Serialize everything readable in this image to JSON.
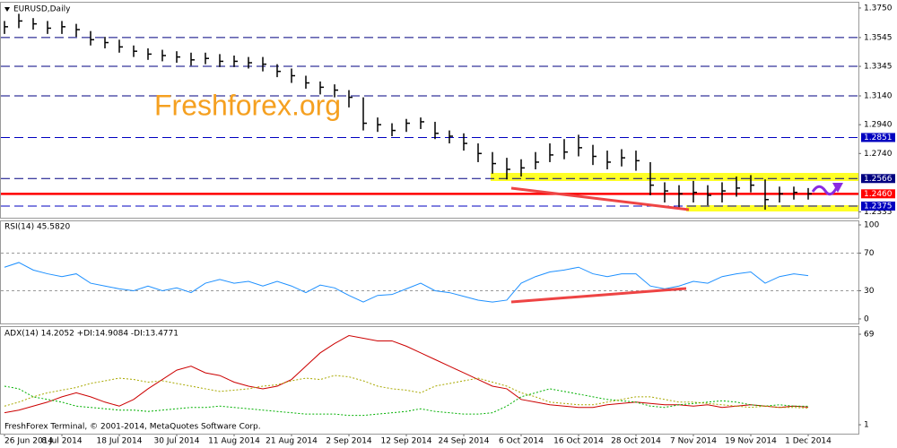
{
  "window": {
    "footer": "FreshForex Terminal, © 2001-2014, MetaQuotes Software Corp.",
    "watermark": "Freshforex.org"
  },
  "chart_data": [
    {
      "type": "hlc",
      "title": "EURUSD,Daily",
      "color": "#000000",
      "categories": [
        "26 Jun 2014",
        null,
        null,
        null,
        "8 Jul 2014",
        null,
        null,
        null,
        "18 Jul 2014",
        null,
        null,
        null,
        "30 Jul 2014",
        null,
        null,
        null,
        "11 Aug 2014",
        null,
        null,
        null,
        "21 Aug 2014",
        null,
        null,
        null,
        "2 Sep 2014",
        null,
        null,
        null,
        "12 Sep 2014",
        null,
        null,
        null,
        "24 Sep 2014",
        null,
        null,
        null,
        "6 Oct 2014",
        null,
        null,
        null,
        "16 Oct 2014",
        null,
        null,
        null,
        "28 Oct 2014",
        null,
        null,
        null,
        "7 Nov 2014",
        null,
        null,
        null,
        "19 Nov 2014",
        null,
        null,
        null,
        "1 Dec 2014"
      ],
      "high": [
        1.366,
        1.371,
        1.368,
        1.366,
        1.366,
        1.364,
        1.359,
        1.355,
        1.353,
        1.349,
        1.347,
        1.346,
        1.345,
        1.344,
        1.344,
        1.343,
        1.342,
        1.341,
        1.341,
        1.336,
        1.333,
        1.328,
        1.324,
        1.322,
        1.318,
        1.313,
        1.299,
        1.295,
        1.298,
        1.299,
        1.296,
        1.29,
        1.288,
        1.281,
        1.275,
        1.271,
        1.27,
        1.275,
        1.281,
        1.284,
        1.287,
        1.28,
        1.276,
        1.277,
        1.276,
        1.268,
        1.254,
        1.252,
        1.255,
        1.252,
        1.254,
        1.258,
        1.259,
        1.256,
        1.251,
        1.251,
        1.25
      ],
      "low": [
        1.357,
        1.361,
        1.36,
        1.357,
        1.357,
        1.355,
        1.349,
        1.347,
        1.344,
        1.341,
        1.339,
        1.338,
        1.337,
        1.335,
        1.336,
        1.334,
        1.334,
        1.333,
        1.331,
        1.327,
        1.323,
        1.319,
        1.315,
        1.313,
        1.306,
        1.29,
        1.289,
        1.286,
        1.289,
        1.291,
        1.284,
        1.281,
        1.276,
        1.268,
        1.26,
        1.256,
        1.258,
        1.263,
        1.268,
        1.27,
        1.272,
        1.266,
        1.263,
        1.265,
        1.262,
        1.245,
        1.24,
        1.236,
        1.24,
        1.238,
        1.24,
        1.244,
        1.247,
        1.235,
        1.24,
        1.242,
        1.242
      ],
      "close": [
        1.362,
        1.366,
        1.364,
        1.361,
        1.362,
        1.36,
        1.353,
        1.351,
        1.348,
        1.345,
        1.343,
        1.342,
        1.341,
        1.339,
        1.34,
        1.338,
        1.338,
        1.337,
        1.336,
        1.331,
        1.328,
        1.323,
        1.32,
        1.318,
        1.313,
        1.295,
        1.294,
        1.29,
        1.295,
        1.296,
        1.288,
        1.286,
        1.281,
        1.274,
        1.267,
        1.263,
        1.264,
        1.268,
        1.273,
        1.275,
        1.278,
        1.272,
        1.268,
        1.271,
        1.269,
        1.252,
        1.248,
        1.246,
        1.247,
        1.245,
        1.248,
        1.25,
        1.252,
        1.242,
        1.246,
        1.247,
        1.246
      ],
      "ylim": [
        1.2294,
        1.3787
      ],
      "yticks": [
        {
          "value": 1.375,
          "label": "1.3750"
        },
        1.3545,
        1.3345,
        {
          "value": 1.314,
          "label": "1.3140"
        },
        {
          "value": 1.294,
          "label": "1.2940"
        },
        {
          "value": 1.274,
          "label": "1.2740"
        },
        1.2335
      ],
      "levels": [
        {
          "value": 1.3545,
          "color": "#000080",
          "style": "dashed"
        },
        {
          "value": 1.3345,
          "color": "#000080",
          "style": "dashed"
        },
        {
          "value": 1.314,
          "color": "#000080",
          "style": "dashed"
        },
        {
          "value": 1.2851,
          "color": "#0000c0",
          "style": "dashed",
          "marked": true
        },
        {
          "value": 1.2566,
          "color": "#000080",
          "style": "dashed",
          "marked": true
        },
        {
          "value": 1.246,
          "label": "1.2460",
          "color": "#ff0000",
          "style": "solid",
          "marked": true
        },
        {
          "value": 1.2375,
          "color": "#0000c0",
          "style": "dashed",
          "marked": true
        }
      ]
    },
    {
      "type": "line",
      "title": "RSI(14) 45.5820",
      "color": "#1e90ff",
      "values": [
        55,
        60,
        52,
        48,
        45,
        48,
        38,
        35,
        32,
        30,
        35,
        30,
        33,
        28,
        38,
        42,
        38,
        40,
        35,
        40,
        35,
        28,
        36,
        33,
        25,
        18,
        25,
        26,
        32,
        38,
        30,
        28,
        24,
        20,
        18,
        20,
        38,
        45,
        50,
        52,
        55,
        48,
        45,
        48,
        48,
        35,
        32,
        35,
        40,
        38,
        45,
        48,
        50,
        38,
        45,
        48,
        46
      ],
      "ylim": [
        -4.8,
        103.8
      ],
      "yticks": [
        100,
        70,
        30,
        0
      ],
      "levels": [
        70,
        30
      ]
    },
    {
      "type": "line",
      "title": "ADX(14) 14.2052 +DI:14.9084 -DI:13.4771",
      "series": [
        {
          "color": "#cc0000",
          "style": "solid",
          "values": [
            10,
            12,
            15,
            18,
            22,
            25,
            22,
            18,
            15,
            20,
            28,
            35,
            42,
            45,
            40,
            38,
            33,
            30,
            28,
            30,
            35,
            45,
            55,
            62,
            68,
            66,
            64,
            64,
            60,
            55,
            50,
            45,
            40,
            35,
            30,
            28,
            20,
            18,
            16,
            15,
            14,
            14,
            16,
            17,
            18,
            17,
            16,
            16,
            15,
            16,
            14,
            15,
            16,
            15,
            14,
            15,
            14.2
          ]
        },
        {
          "color": "#00b000",
          "style": "dotted",
          "values": [
            30,
            28,
            22,
            20,
            18,
            15,
            14,
            13,
            12,
            12,
            11,
            12,
            13,
            14,
            14,
            15,
            14,
            13,
            12,
            11,
            10,
            9,
            9,
            9,
            8,
            8,
            9,
            10,
            11,
            13,
            11,
            10,
            9,
            9,
            10,
            15,
            22,
            25,
            28,
            26,
            24,
            22,
            20,
            19,
            18,
            15,
            14,
            16,
            17,
            18,
            19,
            18,
            16,
            15,
            16,
            15,
            14.9
          ]
        },
        {
          "color": "#a8a800",
          "style": "dotted",
          "values": [
            15,
            18,
            22,
            25,
            27,
            29,
            32,
            34,
            36,
            35,
            33,
            34,
            32,
            30,
            28,
            26,
            27,
            28,
            30,
            31,
            34,
            36,
            35,
            38,
            37,
            34,
            30,
            28,
            27,
            25,
            30,
            32,
            34,
            36,
            33,
            30,
            25,
            22,
            18,
            17,
            16,
            16,
            18,
            20,
            22,
            22,
            20,
            18,
            18,
            17,
            16,
            15,
            14,
            15,
            14,
            14,
            13.5
          ]
        }
      ],
      "ylim": [
        -5.7,
        74.4
      ],
      "yticks": [
        69,
        1
      ]
    }
  ]
}
